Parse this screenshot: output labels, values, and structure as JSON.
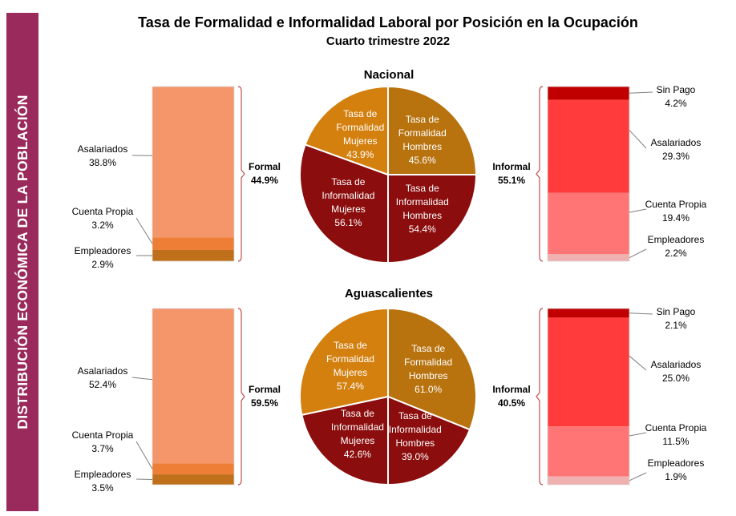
{
  "side_label": "DISTRIBUCIÓN ECONÓMICA DE LA POBLACIÓN",
  "title": "Tasa de Formalidad e Informalidad Laboral por Posición en la Ocupación",
  "subtitle": "Cuarto trimestre 2022",
  "colors": {
    "side_band": "#9b2a5c",
    "formal_asalariados": "#f4956a",
    "formal_cuenta_propia": "#ee7d35",
    "formal_empleadores": "#c0701a",
    "informal_sin_pago": "#c00000",
    "informal_asalariados": "#ff3b3b",
    "informal_cuenta_propia": "#ff7575",
    "informal_empleadores": "#f0b0b0",
    "pie_formal_hombres": "#b8730f",
    "pie_formal_mujeres": "#d4800f",
    "pie_informal": "#8b0d0d"
  },
  "chart_data": [
    {
      "type": "bar",
      "panel": "Nacional",
      "side": "formal",
      "group_label": "Formal",
      "group_value": "44.9%",
      "stacked": true,
      "categories": [
        "Asalariados",
        "Cuenta Propia",
        "Empleadores"
      ],
      "values": [
        38.8,
        3.2,
        2.9
      ],
      "value_labels": [
        "38.8%",
        "3.2%",
        "2.9%"
      ]
    },
    {
      "type": "pie",
      "panel": "Nacional",
      "title": "Nacional",
      "slices": [
        {
          "label": [
            "Tasa de",
            "Formalidad",
            "Hombres"
          ],
          "value": 45.6,
          "value_label": "45.6%",
          "start_deg": 270,
          "end_deg": 360,
          "color": "pie_formal_hombres"
        },
        {
          "label": [
            "Tasa de",
            "Informalidad",
            "Hombres"
          ],
          "value": 54.4,
          "value_label": "54.4%",
          "start_deg": 0,
          "end_deg": 90,
          "color": "pie_informal"
        },
        {
          "label": [
            "Tasa de",
            "Informalidad",
            "Mujeres"
          ],
          "value": 56.1,
          "value_label": "56.1%",
          "start_deg": 90,
          "end_deg": 200,
          "color": "pie_informal"
        },
        {
          "label": [
            "Tasa de",
            "Formalidad",
            "Mujeres"
          ],
          "value": 43.9,
          "value_label": "43.9%",
          "start_deg": 200,
          "end_deg": 270,
          "color": "pie_formal_mujeres"
        }
      ]
    },
    {
      "type": "bar",
      "panel": "Nacional",
      "side": "informal",
      "group_label": "Informal",
      "group_value": "55.1%",
      "stacked": true,
      "categories": [
        "Sin Pago",
        "Asalariados",
        "Cuenta Propia",
        "Empleadores"
      ],
      "values": [
        4.2,
        29.3,
        19.4,
        2.2
      ],
      "value_labels": [
        "4.2%",
        "29.3%",
        "19.4%",
        "2.2%"
      ]
    },
    {
      "type": "bar",
      "panel": "Aguascalientes",
      "side": "formal",
      "group_label": "Formal",
      "group_value": "59.5%",
      "stacked": true,
      "categories": [
        "Asalariados",
        "Cuenta Propia",
        "Empleadores"
      ],
      "values": [
        52.4,
        3.7,
        3.5
      ],
      "value_labels": [
        "52.4%",
        "3.7%",
        "3.5%"
      ]
    },
    {
      "type": "pie",
      "panel": "Aguascalientes",
      "title": "Aguascalientes",
      "slices": [
        {
          "label": [
            "Tasa de",
            "Formalidad",
            "Hombres"
          ],
          "value": 61.0,
          "value_label": "61.0%",
          "start_deg": 270,
          "end_deg": 382,
          "color": "pie_formal_hombres"
        },
        {
          "label": [
            "Tasa de",
            "Informalidad",
            "Hombres"
          ],
          "value": 39.0,
          "value_label": "39.0%",
          "start_deg": 22,
          "end_deg": 90,
          "color": "pie_informal"
        },
        {
          "label": [
            "Tasa de",
            "Informalidad",
            "Mujeres"
          ],
          "value": 42.6,
          "value_label": "42.6%",
          "start_deg": 90,
          "end_deg": 168,
          "color": "pie_informal"
        },
        {
          "label": [
            "Tasa de",
            "Formalidad",
            "Mujeres"
          ],
          "value": 57.4,
          "value_label": "57.4%",
          "start_deg": 168,
          "end_deg": 270,
          "color": "pie_formal_mujeres"
        }
      ]
    },
    {
      "type": "bar",
      "panel": "Aguascalientes",
      "side": "informal",
      "group_label": "Informal",
      "group_value": "40.5%",
      "stacked": true,
      "categories": [
        "Sin Pago",
        "Asalariados",
        "Cuenta Propia",
        "Empleadores"
      ],
      "values": [
        2.1,
        25.0,
        11.5,
        1.9
      ],
      "value_labels": [
        "2.1%",
        "25.0%",
        "11.5%",
        "1.9%"
      ]
    }
  ]
}
